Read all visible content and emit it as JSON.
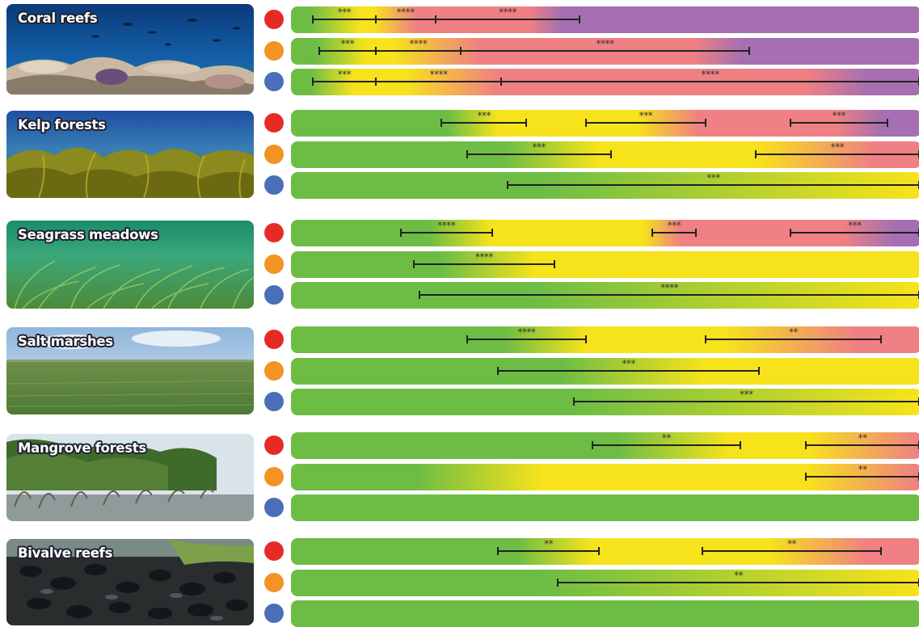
{
  "colors": {
    "scenarios": [
      "#e62b26",
      "#f39323",
      "#4a6eb8"
    ],
    "green": "#6dbd45",
    "yellow": "#f7e31b",
    "salmon": "#ef8083",
    "purple": "#a56fb1"
  },
  "ecosystems": [
    {
      "name": "Coral reefs",
      "rows": [
        {
          "stops": [
            [
              "green",
              0
            ],
            [
              "green",
              3
            ],
            [
              "yellow",
              11
            ],
            [
              "yellow",
              13
            ],
            [
              "salmon",
              20
            ],
            [
              "salmon",
              38
            ],
            [
              "purple",
              43
            ],
            [
              "purple",
              100
            ]
          ],
          "intervals": [
            {
              "from": 3.5,
              "to": 13.5,
              "label": "***"
            },
            {
              "from": 13.5,
              "to": 23,
              "label": "****"
            },
            {
              "from": 23,
              "to": 46,
              "label": "****"
            }
          ]
        },
        {
          "stops": [
            [
              "green",
              0
            ],
            [
              "green",
              4
            ],
            [
              "yellow",
              12
            ],
            [
              "yellow",
              16
            ],
            [
              "salmon",
              30
            ],
            [
              "salmon",
              64
            ],
            [
              "purple",
              72
            ],
            [
              "purple",
              100
            ]
          ],
          "intervals": [
            {
              "from": 4.5,
              "to": 13.5,
              "label": "***"
            },
            {
              "from": 13.5,
              "to": 27,
              "label": "****"
            },
            {
              "from": 27,
              "to": 73,
              "label": "****"
            }
          ]
        },
        {
          "stops": [
            [
              "green",
              0
            ],
            [
              "green",
              3
            ],
            [
              "yellow",
              10
            ],
            [
              "yellow",
              18
            ],
            [
              "salmon",
              33
            ],
            [
              "salmon",
              82
            ],
            [
              "purple",
              92
            ],
            [
              "purple",
              100
            ]
          ],
          "intervals": [
            {
              "from": 3.5,
              "to": 13.5,
              "label": "***"
            },
            {
              "from": 13.5,
              "to": 33.5,
              "label": "****"
            },
            {
              "from": 33.5,
              "to": 100,
              "label": "****"
            }
          ]
        }
      ]
    },
    {
      "name": "Kelp forests",
      "rows": [
        {
          "stops": [
            [
              "green",
              0
            ],
            [
              "green",
              25
            ],
            [
              "yellow",
              33
            ],
            [
              "yellow",
              55
            ],
            [
              "salmon",
              65
            ],
            [
              "salmon",
              87
            ],
            [
              "purple",
              94
            ],
            [
              "purple",
              100
            ]
          ],
          "intervals": [
            {
              "from": 24,
              "to": 37.5,
              "label": "***"
            },
            {
              "from": 47,
              "to": 66,
              "label": "***"
            },
            {
              "from": 79.5,
              "to": 95,
              "label": "***"
            }
          ]
        },
        {
          "stops": [
            [
              "green",
              0
            ],
            [
              "green",
              34
            ],
            [
              "yellow",
              49
            ],
            [
              "yellow",
              74
            ],
            [
              "salmon",
              93
            ],
            [
              "salmon",
              100
            ]
          ],
          "intervals": [
            {
              "from": 28,
              "to": 51,
              "label": "***"
            },
            {
              "from": 74,
              "to": 100,
              "label": "***"
            }
          ]
        },
        {
          "stops": [
            [
              "green",
              0
            ],
            [
              "green",
              40
            ],
            [
              "yellow",
              100
            ]
          ],
          "intervals": [
            {
              "from": 34.5,
              "to": 100,
              "label": "***"
            }
          ]
        }
      ]
    },
    {
      "name": "Seagrass meadows",
      "rows": [
        {
          "stops": [
            [
              "green",
              0
            ],
            [
              "green",
              22
            ],
            [
              "yellow",
              32
            ],
            [
              "yellow",
              56
            ],
            [
              "salmon",
              62
            ],
            [
              "salmon",
              88
            ],
            [
              "purple",
              96
            ],
            [
              "purple",
              100
            ]
          ],
          "intervals": [
            {
              "from": 17.5,
              "to": 32,
              "label": "****"
            },
            {
              "from": 57.5,
              "to": 64.5,
              "label": "***"
            },
            {
              "from": 79.5,
              "to": 100,
              "label": "***"
            }
          ]
        },
        {
          "stops": [
            [
              "green",
              0
            ],
            [
              "green",
              24
            ],
            [
              "yellow",
              39
            ],
            [
              "yellow",
              100
            ]
          ],
          "intervals": [
            {
              "from": 19.5,
              "to": 42,
              "label": "****"
            }
          ]
        },
        {
          "stops": [
            [
              "green",
              0
            ],
            [
              "green",
              38
            ],
            [
              "yellow",
              100
            ]
          ],
          "intervals": [
            {
              "from": 20.5,
              "to": 100,
              "label": "****"
            }
          ]
        }
      ]
    },
    {
      "name": "Salt marshes",
      "rows": [
        {
          "stops": [
            [
              "green",
              0
            ],
            [
              "green",
              34
            ],
            [
              "yellow",
              47
            ],
            [
              "yellow",
              69
            ],
            [
              "salmon",
              90
            ],
            [
              "salmon",
              100
            ]
          ],
          "intervals": [
            {
              "from": 28,
              "to": 47,
              "label": "****"
            },
            {
              "from": 66,
              "to": 94,
              "label": "**"
            }
          ]
        },
        {
          "stops": [
            [
              "green",
              0
            ],
            [
              "green",
              43
            ],
            [
              "yellow",
              66
            ],
            [
              "yellow",
              100
            ]
          ],
          "intervals": [
            {
              "from": 33,
              "to": 74.5,
              "label": "***"
            }
          ]
        },
        {
          "stops": [
            [
              "green",
              0
            ],
            [
              "green",
              45
            ],
            [
              "yellow",
              100
            ]
          ],
          "intervals": [
            {
              "from": 45,
              "to": 100,
              "label": "***"
            }
          ]
        }
      ]
    },
    {
      "name": "Mangrove forests",
      "rows": [
        {
          "stops": [
            [
              "green",
              0
            ],
            [
              "green",
              52
            ],
            [
              "yellow",
              70
            ],
            [
              "yellow",
              82
            ],
            [
              "salmon",
              100
            ]
          ],
          "intervals": [
            {
              "from": 48,
              "to": 71.5,
              "label": "**"
            },
            {
              "from": 82,
              "to": 100,
              "label": "**"
            }
          ]
        },
        {
          "stops": [
            [
              "green",
              0
            ],
            [
              "green",
              20
            ],
            [
              "yellow",
              40
            ],
            [
              "yellow",
              82
            ],
            [
              "salmon",
              100
            ]
          ],
          "intervals": [
            {
              "from": 82,
              "to": 100,
              "label": "**"
            }
          ]
        },
        {
          "stops": [
            [
              "green",
              0
            ],
            [
              "green",
              100
            ]
          ],
          "intervals": []
        }
      ]
    },
    {
      "name": "Bivalve reefs",
      "rows": [
        {
          "stops": [
            [
              "green",
              0
            ],
            [
              "green",
              36
            ],
            [
              "yellow",
              48
            ],
            [
              "yellow",
              76
            ],
            [
              "salmon",
              92
            ],
            [
              "salmon",
              100
            ]
          ],
          "intervals": [
            {
              "from": 33,
              "to": 49,
              "label": "**"
            },
            {
              "from": 65.5,
              "to": 94,
              "label": "**"
            }
          ]
        },
        {
          "stops": [
            [
              "green",
              0
            ],
            [
              "green",
              40
            ],
            [
              "yellow",
              100
            ]
          ],
          "intervals": [
            {
              "from": 42.5,
              "to": 100,
              "label": "**"
            }
          ]
        },
        {
          "stops": [
            [
              "green",
              0
            ],
            [
              "green",
              100
            ]
          ],
          "intervals": []
        }
      ]
    }
  ]
}
